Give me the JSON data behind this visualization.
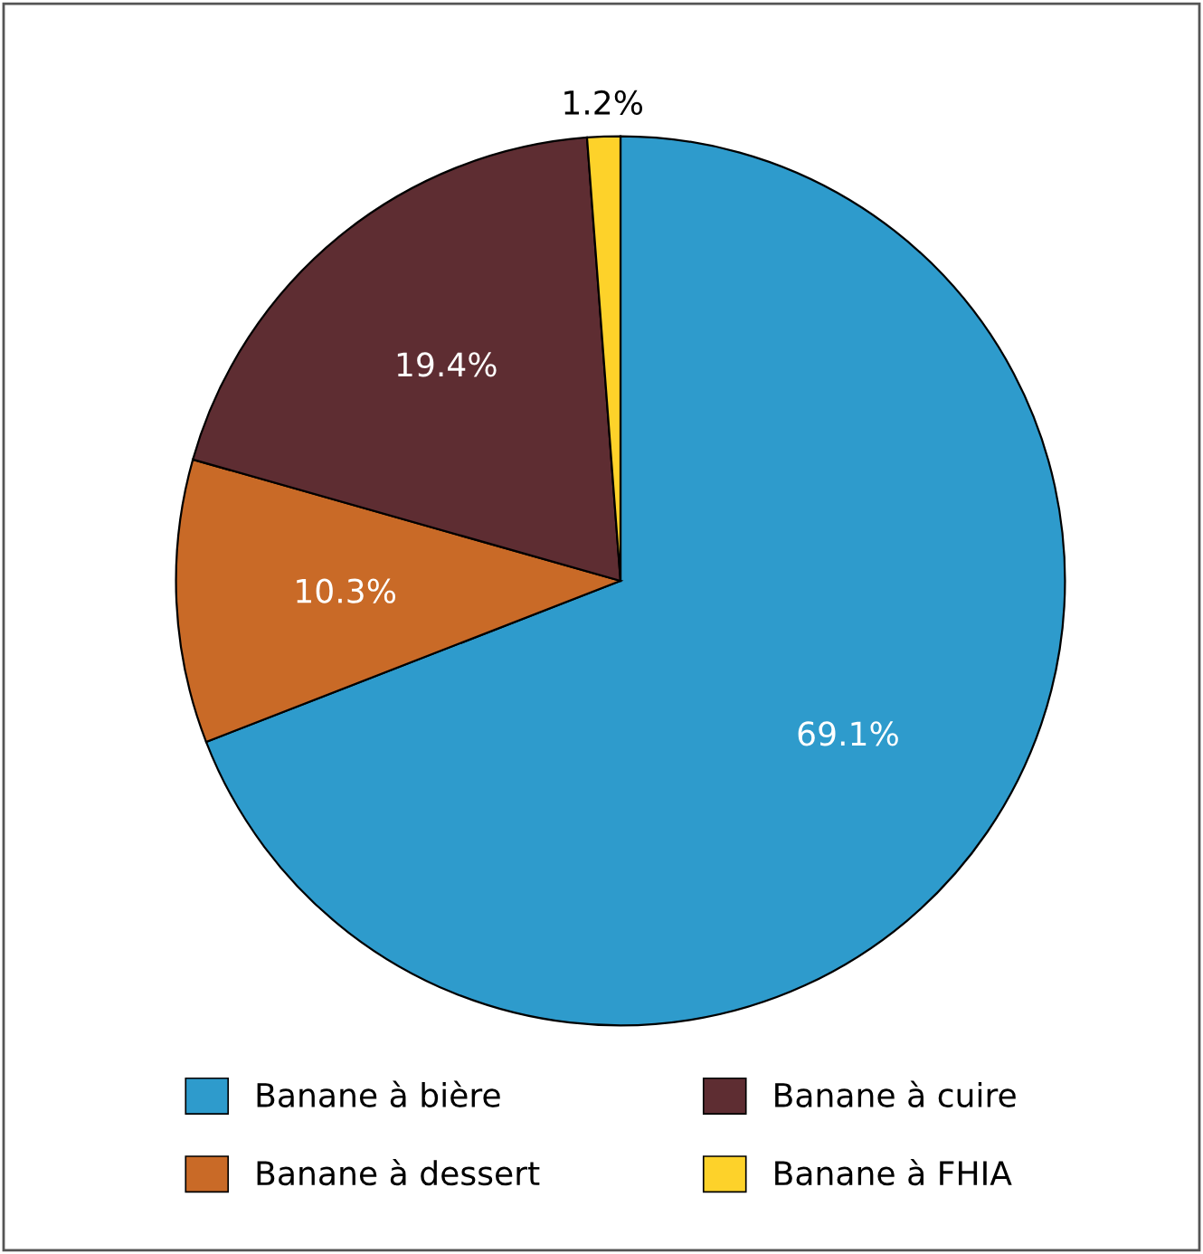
{
  "chart_data": {
    "type": "pie",
    "categories": [
      "Banane à bière",
      "Banane à dessert",
      "Banane à cuire",
      "Banane à FHIA"
    ],
    "values": [
      69.1,
      10.3,
      19.4,
      1.2
    ],
    "colors": [
      "#2e9bcc",
      "#c96a27",
      "#5e2d32",
      "#fdd22a"
    ],
    "value_labels": [
      "69.1%",
      "10.3%",
      "19.4%",
      "1.2%"
    ],
    "legend": "bottom"
  }
}
